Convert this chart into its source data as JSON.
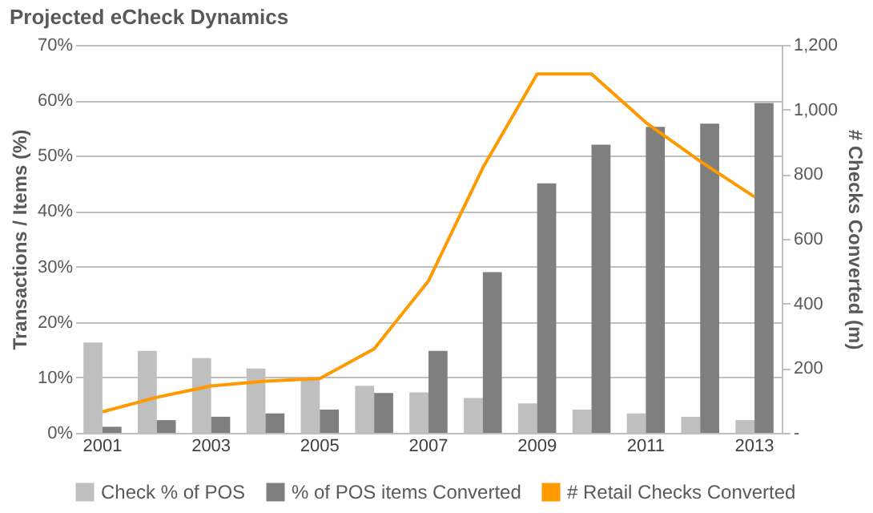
{
  "chart_data": {
    "type": "bar",
    "title": "Projected eCheck Dynamics",
    "ylabel": "Transactions / Items (%)",
    "y2label": "# Checks Converted (m)",
    "categories": [
      "2001",
      null,
      "2003",
      null,
      "2005",
      null,
      "2007",
      null,
      "2009",
      null,
      "2011",
      null,
      "2013"
    ],
    "series": [
      {
        "name": "Check % of POS",
        "color": "#bfbfbf",
        "values": [
          16.3,
          14.8,
          13.5,
          11.6,
          9.8,
          8.5,
          7.3,
          6.3,
          5.3,
          4.2,
          3.5,
          2.9,
          2.3
        ]
      },
      {
        "name": "% of POS items Converted",
        "color": "#7f7f7f",
        "values": [
          1.1,
          2.3,
          2.9,
          3.5,
          4.2,
          7.2,
          14.8,
          29,
          45,
          52,
          55.2,
          55.8,
          59.5
        ]
      },
      {
        "name": "# Retail Checks Converted",
        "color": "#ff9900",
        "type": "line",
        "axis": "y2",
        "values": [
          65,
          110,
          145,
          160,
          168,
          260,
          470,
          820,
          1110,
          1110,
          960,
          840,
          730
        ]
      }
    ],
    "ylim": [
      0,
      70
    ],
    "yticks": [
      {
        "value": 0,
        "label": "0%"
      },
      {
        "value": 10,
        "label": "10%"
      },
      {
        "value": 20,
        "label": "20%"
      },
      {
        "value": 30,
        "label": "30%"
      },
      {
        "value": 40,
        "label": "40%"
      },
      {
        "value": 50,
        "label": "50%"
      },
      {
        "value": 60,
        "label": "60%"
      },
      {
        "value": 70,
        "label": "70%"
      }
    ],
    "y2lim": [
      0,
      1200
    ],
    "y2ticks": [
      {
        "value": 0,
        "label": "-"
      },
      200,
      400,
      600,
      800,
      {
        "value": 1000,
        "label": "1,000"
      },
      {
        "value": 1200,
        "label": "1,200"
      }
    ],
    "grid": "y",
    "legend": "bottom"
  }
}
